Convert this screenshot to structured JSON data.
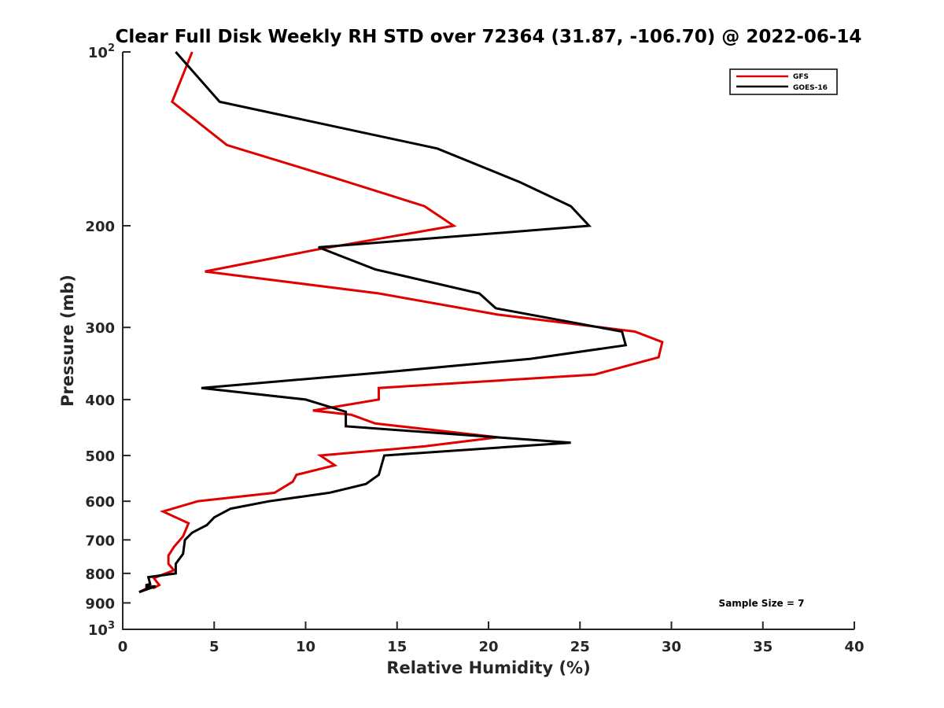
{
  "chart_data": {
    "type": "line",
    "title": "Clear Full Disk Weekly RH STD over 72364 (31.87, -106.70) @ 2022-06-14",
    "xlabel": "Relative Humidity (%)",
    "ylabel": "Pressure (mb)",
    "xlim": [
      0,
      40
    ],
    "ylim": [
      100,
      1000
    ],
    "y_scale": "log",
    "y_reversed": true,
    "x_ticks": [
      "0",
      "5",
      "10",
      "15",
      "20",
      "25",
      "30",
      "35",
      "40"
    ],
    "y_ticks": [
      {
        "value": 100,
        "base": "10",
        "exp": "2"
      },
      {
        "value": 200,
        "label": "200"
      },
      {
        "value": 300,
        "label": "300"
      },
      {
        "value": 400,
        "label": "400"
      },
      {
        "value": 500,
        "label": "500"
      },
      {
        "value": 600,
        "label": "600"
      },
      {
        "value": 700,
        "label": "700"
      },
      {
        "value": 800,
        "label": "800"
      },
      {
        "value": 900,
        "label": "900"
      },
      {
        "value": 1000,
        "base": "10",
        "exp": "3"
      }
    ],
    "legend_position": "top-right",
    "grid": false,
    "annotation": "Sample Size = 7",
    "series": [
      {
        "name": "GFS",
        "color": "#e00000",
        "points": [
          [
            3.8,
            100
          ],
          [
            2.7,
            122
          ],
          [
            5.7,
            145
          ],
          [
            11.5,
            165
          ],
          [
            16.5,
            185
          ],
          [
            18.1,
            200
          ],
          [
            10.6,
            220
          ],
          [
            4.5,
            240
          ],
          [
            14.0,
            262
          ],
          [
            20.5,
            285
          ],
          [
            28.0,
            305
          ],
          [
            29.5,
            318
          ],
          [
            29.3,
            338
          ],
          [
            25.8,
            362
          ],
          [
            14.0,
            382
          ],
          [
            14.0,
            400
          ],
          [
            10.4,
            418
          ],
          [
            12.5,
            425
          ],
          [
            13.8,
            440
          ],
          [
            20.5,
            465
          ],
          [
            16.5,
            482
          ],
          [
            10.8,
            500
          ],
          [
            11.6,
            520
          ],
          [
            9.5,
            540
          ],
          [
            9.3,
            555
          ],
          [
            8.3,
            580
          ],
          [
            4.1,
            600
          ],
          [
            2.2,
            625
          ],
          [
            3.6,
            655
          ],
          [
            3.3,
            690
          ],
          [
            2.8,
            720
          ],
          [
            2.5,
            745
          ],
          [
            2.5,
            770
          ],
          [
            2.8,
            790
          ],
          [
            1.7,
            815
          ],
          [
            2.0,
            838
          ],
          [
            1.7,
            848
          ],
          [
            1.5,
            843
          ],
          [
            0.9,
            862
          ]
        ]
      },
      {
        "name": "GOES-16",
        "color": "#000000",
        "points": [
          [
            2.9,
            100
          ],
          [
            5.3,
            122
          ],
          [
            17.2,
            147
          ],
          [
            21.7,
            168
          ],
          [
            24.5,
            185
          ],
          [
            25.5,
            200
          ],
          [
            10.7,
            218
          ],
          [
            13.8,
            238
          ],
          [
            19.5,
            262
          ],
          [
            20.4,
            278
          ],
          [
            27.3,
            305
          ],
          [
            27.5,
            322
          ],
          [
            22.3,
            340
          ],
          [
            13.8,
            360
          ],
          [
            4.3,
            382
          ],
          [
            10.0,
            400
          ],
          [
            12.2,
            420
          ],
          [
            12.2,
            445
          ],
          [
            24.5,
            475
          ],
          [
            14.3,
            500
          ],
          [
            14.0,
            540
          ],
          [
            13.3,
            560
          ],
          [
            11.3,
            580
          ],
          [
            8.0,
            600
          ],
          [
            5.9,
            618
          ],
          [
            5.0,
            640
          ],
          [
            4.6,
            660
          ],
          [
            3.8,
            680
          ],
          [
            3.4,
            700
          ],
          [
            3.3,
            740
          ],
          [
            2.9,
            770
          ],
          [
            2.9,
            800
          ],
          [
            1.4,
            812
          ],
          [
            1.5,
            835
          ],
          [
            1.3,
            838
          ],
          [
            1.3,
            845
          ],
          [
            1.8,
            842
          ],
          [
            0.9,
            862
          ]
        ]
      }
    ]
  }
}
